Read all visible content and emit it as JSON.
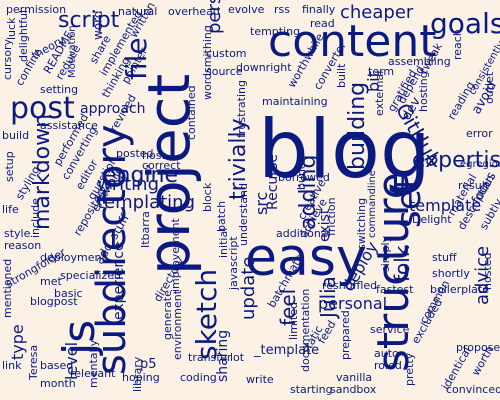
{
  "theme": {
    "background": "#fbf1e4",
    "ink": "#0b1a80"
  },
  "words": [
    "blog",
    "project",
    "easy",
    "content",
    "structure",
    "js",
    "subdirectory",
    "set",
    "post",
    "file",
    "goals",
    "sketch",
    "markdown",
    "engine",
    "script",
    "trivially",
    "building",
    "adding",
    "expertise",
    "GitHub",
    "update",
    "feel",
    "Julia",
    "personal",
    "folk",
    "writing",
    "templating",
    "template",
    "advice",
    "deploy",
    "src",
    "type",
    "level",
    "experience",
    "sharing",
    "level",
    "add_stuff",
    "approach",
    "person",
    "cheaper",
    "natural",
    "permission",
    "overhead",
    "evolve",
    "finally",
    "rss",
    "tempting",
    "read",
    "reach",
    "consistently",
    "avoid",
    "assembling",
    "term",
    "depend",
    "hosting",
    "gratified",
    "built",
    "maintaining",
    "worthwhile",
    "converter",
    "downright",
    "source",
    "custom",
    "frustrating",
    "Recurse",
    "borrowed",
    "bunch",
    "commandline",
    "switching",
    "simply",
    "Delight",
    "result",
    "egregiou",
    "stuff",
    "shortly",
    "boilerplate",
    "common",
    "excluded",
    "propose",
    "hosted",
    "identical",
    "convinced",
    "worth",
    "pretty",
    "service",
    "auto",
    "roled",
    "prepared",
    "vanilla",
    "sandbox",
    "starting",
    "write",
    "lot",
    "creative",
    "environment",
    "batch",
    "center",
    "directory",
    "transfer",
    "coding",
    "mentally",
    "hoping",
    "library",
    "p5",
    "month",
    "Teresa",
    "blogpost",
    "strongfolder",
    "mentioned",
    "link",
    "life",
    "style",
    "reason",
    "setup",
    "styling",
    "build",
    "cursory",
    "confine",
    "luck",
    "delightful",
    "theory",
    "README",
    "reduce",
    "word",
    "share",
    "implemented",
    "Motivation",
    "thinking",
    "setting",
    "assistance",
    "written",
    "performed",
    "converting",
    "editor",
    "include",
    "question",
    "repository",
    "deployment",
    "met",
    "specialized",
    "basic",
    "erstwhile",
    "posted",
    "correct",
    "host",
    "revived",
    "wordsmithing",
    "pointer",
    "contained",
    "block",
    "initial",
    "understand",
    "javascript",
    "Julia",
    "achieve",
    "additional",
    "friction",
    "exist",
    "fastest",
    "reshuffled",
    "documentation",
    "static",
    "feed",
    "limited",
    "excellent",
    "bit",
    "external",
    "dev",
    "tweak",
    "outlet",
    "reading",
    "error",
    "focus",
    "material",
    "subtly",
    "description",
    "feel",
    "generate",
    "improvement",
    "Itbarra",
    "complete",
    "p5js",
    "relevant",
    "based",
    "_template",
    "batchmate"
  ]
}
